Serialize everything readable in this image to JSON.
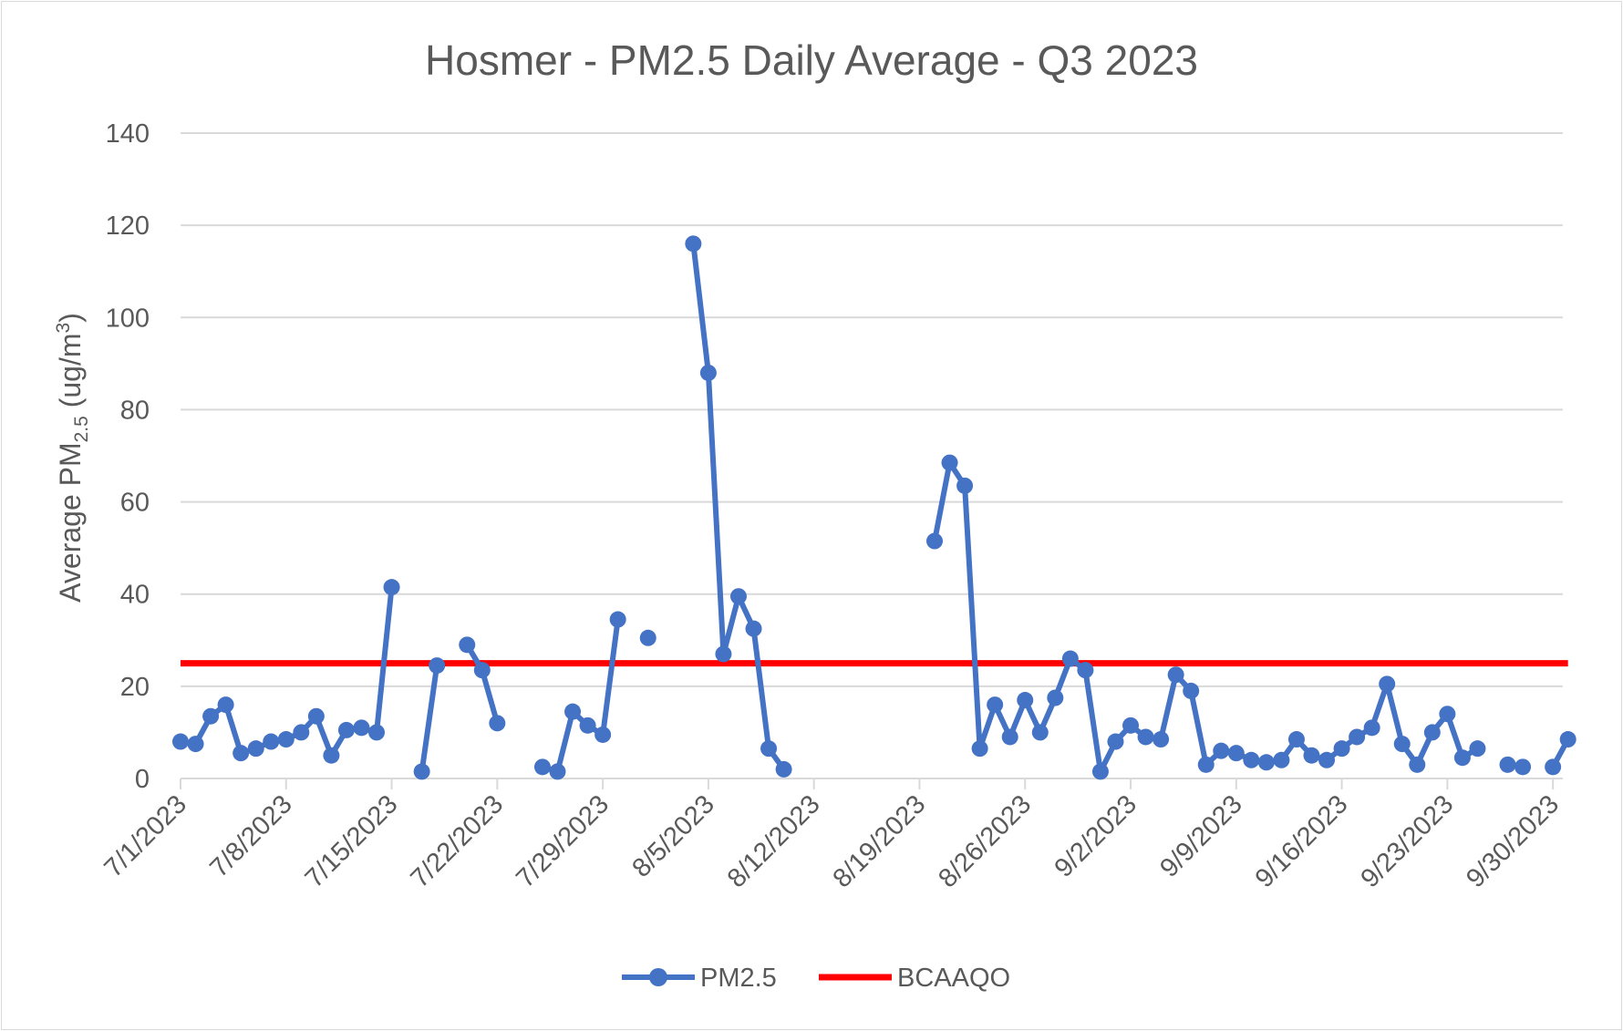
{
  "chart_data": {
    "type": "line",
    "title": "Hosmer - PM2.5 Daily Average - Q3 2023",
    "ylabel": {
      "prefix": "Average PM",
      "sub": "2.5",
      "unit_open": " (ug/m",
      "sup": "3",
      "unit_close": ")"
    },
    "xlabel": "",
    "ylim": [
      0,
      140
    ],
    "yticks": [
      "0",
      "20",
      "40",
      "60",
      "80",
      "100",
      "120",
      "140"
    ],
    "xlim": [
      "2023-07-01",
      "2023-09-30"
    ],
    "xticks": [
      {
        "date": "2023-07-01",
        "label": "7/1/2023"
      },
      {
        "date": "2023-07-08",
        "label": "7/8/2023"
      },
      {
        "date": "2023-07-15",
        "label": "7/15/2023"
      },
      {
        "date": "2023-07-22",
        "label": "7/22/2023"
      },
      {
        "date": "2023-07-29",
        "label": "7/29/2023"
      },
      {
        "date": "2023-08-05",
        "label": "8/5/2023"
      },
      {
        "date": "2023-08-12",
        "label": "8/12/2023"
      },
      {
        "date": "2023-08-19",
        "label": "8/19/2023"
      },
      {
        "date": "2023-08-26",
        "label": "8/26/2023"
      },
      {
        "date": "2023-09-02",
        "label": "9/2/2023"
      },
      {
        "date": "2023-09-09",
        "label": "9/9/2023"
      },
      {
        "date": "2023-09-16",
        "label": "9/16/2023"
      },
      {
        "date": "2023-09-23",
        "label": "9/23/2023"
      },
      {
        "date": "2023-09-30",
        "label": "9/30/2023"
      }
    ],
    "grid": true,
    "legend_position": "bottom",
    "series": [
      {
        "name": "PM2.5",
        "color": "#4472C4",
        "x": [
          "2023-07-01",
          "2023-07-02",
          "2023-07-03",
          "2023-07-04",
          "2023-07-05",
          "2023-07-06",
          "2023-07-07",
          "2023-07-08",
          "2023-07-09",
          "2023-07-10",
          "2023-07-11",
          "2023-07-12",
          "2023-07-13",
          "2023-07-14",
          "2023-07-15",
          "2023-07-16",
          "2023-07-17",
          "2023-07-18",
          "2023-07-19",
          "2023-07-20",
          "2023-07-21",
          "2023-07-22",
          "2023-07-23",
          "2023-07-24",
          "2023-07-25",
          "2023-07-26",
          "2023-07-27",
          "2023-07-28",
          "2023-07-29",
          "2023-07-30",
          "2023-07-31",
          "2023-08-01",
          "2023-08-02",
          "2023-08-03",
          "2023-08-04",
          "2023-08-05",
          "2023-08-06",
          "2023-08-07",
          "2023-08-08",
          "2023-08-09",
          "2023-08-10",
          "2023-08-11",
          "2023-08-12",
          "2023-08-13",
          "2023-08-14",
          "2023-08-15",
          "2023-08-16",
          "2023-08-17",
          "2023-08-18",
          "2023-08-19",
          "2023-08-20",
          "2023-08-21",
          "2023-08-22",
          "2023-08-23",
          "2023-08-24",
          "2023-08-25",
          "2023-08-26",
          "2023-08-27",
          "2023-08-28",
          "2023-08-29",
          "2023-08-30",
          "2023-08-31",
          "2023-09-01",
          "2023-09-02",
          "2023-09-03",
          "2023-09-04",
          "2023-09-05",
          "2023-09-06",
          "2023-09-07",
          "2023-09-08",
          "2023-09-09",
          "2023-09-10",
          "2023-09-11",
          "2023-09-12",
          "2023-09-13",
          "2023-09-14",
          "2023-09-15",
          "2023-09-16",
          "2023-09-17",
          "2023-09-18",
          "2023-09-19",
          "2023-09-20",
          "2023-09-21",
          "2023-09-22",
          "2023-09-23",
          "2023-09-24",
          "2023-09-25",
          "2023-09-26",
          "2023-09-27",
          "2023-09-28",
          "2023-09-29",
          "2023-09-30",
          "2023-10-01"
        ],
        "values": [
          8,
          7.5,
          13.5,
          16,
          5.5,
          6.5,
          8,
          8.5,
          10,
          13.5,
          5,
          10.5,
          11,
          10,
          41.5,
          null,
          1.5,
          24.5,
          null,
          29,
          23.5,
          12,
          null,
          null,
          2.5,
          1.5,
          14.5,
          11.5,
          9.5,
          34.5,
          null,
          30.5,
          null,
          null,
          116,
          88,
          27,
          39.5,
          32.5,
          6.5,
          2,
          null,
          null,
          null,
          null,
          null,
          null,
          null,
          null,
          null,
          51.5,
          68.5,
          63.5,
          6.5,
          16,
          9,
          17,
          10,
          17.5,
          26,
          23.5,
          1.5,
          8,
          11.5,
          9,
          8.5,
          22.5,
          19,
          3,
          6,
          5.5,
          4,
          3.5,
          4,
          8.5,
          5,
          4,
          6.5,
          9,
          11,
          20.5,
          7.5,
          3,
          10,
          14,
          4.5,
          6.5,
          null,
          3,
          2.5,
          null,
          2.5,
          8.5
        ]
      },
      {
        "name": "BCAAQO",
        "color": "#FF0000",
        "x": [
          "2023-07-01",
          "2023-10-01"
        ],
        "values": [
          25,
          25
        ]
      }
    ]
  }
}
